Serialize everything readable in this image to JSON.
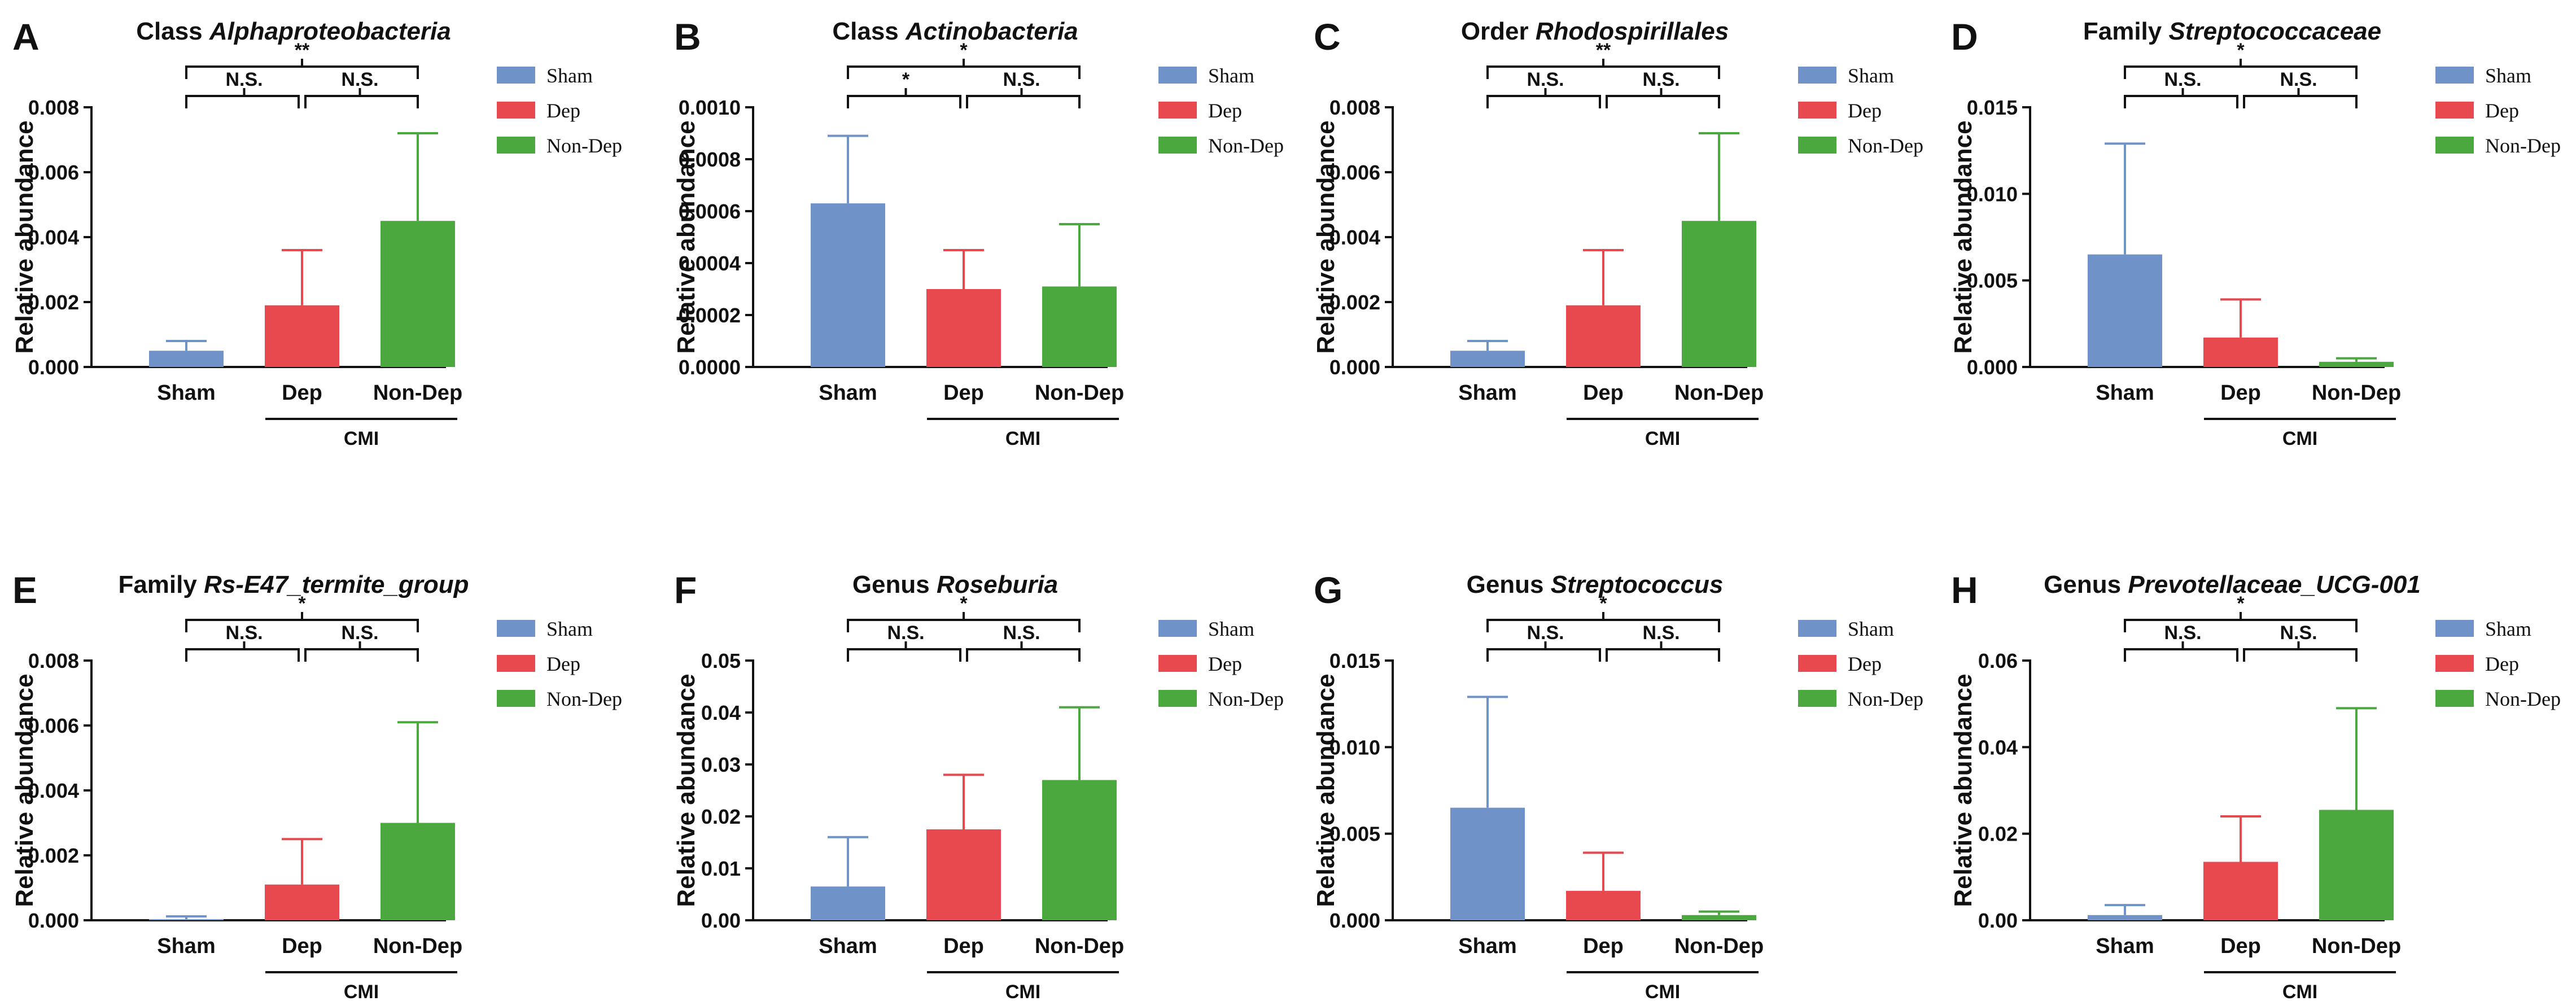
{
  "colors": {
    "sham": "#6f93c9",
    "dep": "#e8494f",
    "nondep": "#4aa83f",
    "axis": "#111111"
  },
  "group_label": "CMI",
  "ylabel": "Relative abundance",
  "chart_data": [
    {
      "letter": "A",
      "type": "bar",
      "title_prefix": "Class ",
      "title_italic": "Alphaproteobacteria",
      "categories": [
        "Sham",
        "Dep",
        "Non-Dep"
      ],
      "values": [
        0.0005,
        0.0019,
        0.0045
      ],
      "errors": [
        0.0003,
        0.0017,
        0.0027
      ],
      "ylim": [
        0,
        0.008
      ],
      "yticks": [
        "0.000",
        "0.002",
        "0.004",
        "0.006",
        "0.008"
      ],
      "legend": [
        "Sham",
        "Dep",
        "Non-Dep"
      ],
      "ylabel": "Relative abundance",
      "sig": {
        "sham_dep": "N.S.",
        "dep_nondep": "N.S.",
        "sham_nondep": "**"
      }
    },
    {
      "letter": "B",
      "type": "bar",
      "title_prefix": "Class ",
      "title_italic": "Actinobacteria",
      "categories": [
        "Sham",
        "Dep",
        "Non-Dep"
      ],
      "values": [
        0.00063,
        0.0003,
        0.00031
      ],
      "errors": [
        0.00026,
        0.00015,
        0.00024
      ],
      "ylim": [
        0,
        0.001
      ],
      "yticks": [
        "0.0000",
        "0.0002",
        "0.0004",
        "0.0006",
        "0.0008",
        "0.0010"
      ],
      "legend": [
        "Sham",
        "Dep",
        "Non-Dep"
      ],
      "ylabel": "Relative abundance",
      "sig": {
        "sham_dep": "*",
        "dep_nondep": "N.S.",
        "sham_nondep": "*"
      }
    },
    {
      "letter": "C",
      "type": "bar",
      "title_prefix": "Order ",
      "title_italic": "Rhodospirillales",
      "categories": [
        "Sham",
        "Dep",
        "Non-Dep"
      ],
      "values": [
        0.0005,
        0.0019,
        0.0045
      ],
      "errors": [
        0.0003,
        0.0017,
        0.0027
      ],
      "ylim": [
        0,
        0.008
      ],
      "yticks": [
        "0.000",
        "0.002",
        "0.004",
        "0.006",
        "0.008"
      ],
      "legend": [
        "Sham",
        "Dep",
        "Non-Dep"
      ],
      "ylabel": "Relative abundance",
      "sig": {
        "sham_dep": "N.S.",
        "dep_nondep": "N.S.",
        "sham_nondep": "**"
      }
    },
    {
      "letter": "D",
      "type": "bar",
      "title_prefix": "Family ",
      "title_italic": "Streptococcaceae",
      "categories": [
        "Sham",
        "Dep",
        "Non-Dep"
      ],
      "values": [
        0.0065,
        0.0017,
        0.0003
      ],
      "errors": [
        0.0064,
        0.0022,
        0.0002
      ],
      "ylim": [
        0,
        0.015
      ],
      "yticks": [
        "0.000",
        "0.005",
        "0.010",
        "0.015"
      ],
      "legend": [
        "Sham",
        "Dep",
        "Non-Dep"
      ],
      "ylabel": "Relative abundance",
      "sig": {
        "sham_dep": "N.S.",
        "dep_nondep": "N.S.",
        "sham_nondep": "*"
      }
    },
    {
      "letter": "E",
      "type": "bar",
      "title_prefix": "Family ",
      "title_italic": "Rs-E47_termite_group",
      "categories": [
        "Sham",
        "Dep",
        "Non-Dep"
      ],
      "values": [
        3e-05,
        0.0011,
        0.003
      ],
      "errors": [
        9e-05,
        0.0014,
        0.0031
      ],
      "ylim": [
        0,
        0.008
      ],
      "yticks": [
        "0.000",
        "0.002",
        "0.004",
        "0.006",
        "0.008"
      ],
      "legend": [
        "Sham",
        "Dep",
        "Non-Dep"
      ],
      "ylabel": "Relative abundance",
      "sig": {
        "sham_dep": "N.S.",
        "dep_nondep": "N.S.",
        "sham_nondep": "*"
      }
    },
    {
      "letter": "F",
      "type": "bar",
      "title_prefix": "Genus ",
      "title_italic": "Roseburia",
      "categories": [
        "Sham",
        "Dep",
        "Non-Dep"
      ],
      "values": [
        0.0065,
        0.0175,
        0.027
      ],
      "errors": [
        0.0095,
        0.0105,
        0.014
      ],
      "ylim": [
        0,
        0.05
      ],
      "yticks": [
        "0.00",
        "0.01",
        "0.02",
        "0.03",
        "0.04",
        "0.05"
      ],
      "legend": [
        "Sham",
        "Dep",
        "Non-Dep"
      ],
      "ylabel": "Relative abundance",
      "sig": {
        "sham_dep": "N.S.",
        "dep_nondep": "N.S.",
        "sham_nondep": "*"
      }
    },
    {
      "letter": "G",
      "type": "bar",
      "title_prefix": "Genus ",
      "title_italic": "Streptococcus",
      "categories": [
        "Sham",
        "Dep",
        "Non-Dep"
      ],
      "values": [
        0.0065,
        0.0017,
        0.0003
      ],
      "errors": [
        0.0064,
        0.0022,
        0.0002
      ],
      "ylim": [
        0,
        0.015
      ],
      "yticks": [
        "0.000",
        "0.005",
        "0.010",
        "0.015"
      ],
      "legend": [
        "Sham",
        "Dep",
        "Non-Dep"
      ],
      "ylabel": "Relative abundance",
      "sig": {
        "sham_dep": "N.S.",
        "dep_nondep": "N.S.",
        "sham_nondep": "*"
      }
    },
    {
      "letter": "H",
      "type": "bar",
      "title_prefix": "Genus ",
      "title_italic": "Prevotellaceae_UCG-001",
      "categories": [
        "Sham",
        "Dep",
        "Non-Dep"
      ],
      "values": [
        0.0012,
        0.0135,
        0.0255
      ],
      "errors": [
        0.0023,
        0.0105,
        0.0235
      ],
      "ylim": [
        0,
        0.06
      ],
      "yticks": [
        "0.00",
        "0.02",
        "0.04",
        "0.06"
      ],
      "legend": [
        "Sham",
        "Dep",
        "Non-Dep"
      ],
      "ylabel": "Relative abundance",
      "sig": {
        "sham_dep": "N.S.",
        "dep_nondep": "N.S.",
        "sham_nondep": "*"
      }
    }
  ]
}
